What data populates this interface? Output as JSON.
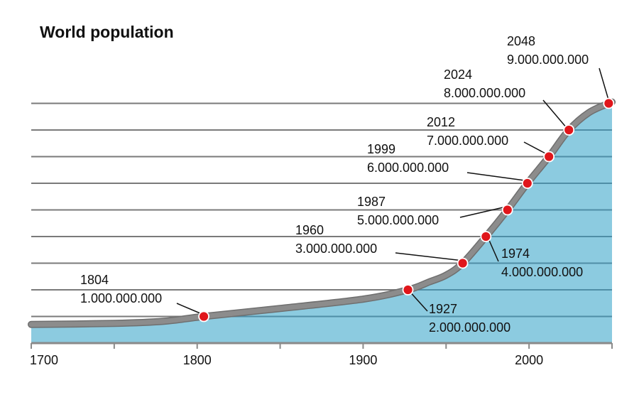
{
  "chart_data": {
    "type": "area",
    "title": "World population",
    "xlabel": "",
    "ylabel": "",
    "xlim": [
      1700,
      2050
    ],
    "ylim": [
      0,
      9.6
    ],
    "y_unit": "billions",
    "grid": true,
    "x_ticks": [
      {
        "value": 1700,
        "label": "1700"
      },
      {
        "value": 1750,
        "label": ""
      },
      {
        "value": 1800,
        "label": "1800"
      },
      {
        "value": 1850,
        "label": ""
      },
      {
        "value": 1900,
        "label": "1900"
      },
      {
        "value": 1950,
        "label": ""
      },
      {
        "value": 2000,
        "label": "2000"
      },
      {
        "value": 2050,
        "label": ""
      }
    ],
    "y_gridlines": [
      1,
      2,
      3,
      4,
      5,
      6,
      7,
      8,
      9
    ],
    "curve": {
      "x": [
        1700,
        1750,
        1780,
        1804,
        1850,
        1900,
        1927,
        1940,
        1950,
        1960,
        1974,
        1987,
        1999,
        2012,
        2024,
        2036,
        2048,
        2050
      ],
      "y": [
        0.7,
        0.74,
        0.82,
        1.0,
        1.3,
        1.65,
        2.0,
        2.3,
        2.55,
        3.0,
        4.0,
        5.0,
        6.0,
        7.0,
        8.0,
        8.65,
        9.0,
        9.05
      ]
    },
    "milestones": [
      {
        "year": 1804,
        "value": 1,
        "year_label": "1804",
        "value_label": "1.000.000.000"
      },
      {
        "year": 1927,
        "value": 2,
        "year_label": "1927",
        "value_label": "2.000.000.000"
      },
      {
        "year": 1960,
        "value": 3,
        "year_label": "1960",
        "value_label": "3.000.000.000"
      },
      {
        "year": 1974,
        "value": 4,
        "year_label": "1974",
        "value_label": "4.000.000.000"
      },
      {
        "year": 1987,
        "value": 5,
        "year_label": "1987",
        "value_label": "5.000.000.000"
      },
      {
        "year": 1999,
        "value": 6,
        "year_label": "1999",
        "value_label": "6.000.000.000"
      },
      {
        "year": 2012,
        "value": 7,
        "year_label": "2012",
        "value_label": "7.000.000.000"
      },
      {
        "year": 2024,
        "value": 8,
        "year_label": "2024",
        "value_label": "8.000.000.000"
      },
      {
        "year": 2048,
        "value": 9,
        "year_label": "2048",
        "value_label": "9.000.000.000"
      }
    ],
    "colors": {
      "area": "#8ccbe0",
      "curve": "#8c8c8c",
      "gridline_outside": "#7a7a7a",
      "gridline_inside": "#4f8ea6",
      "point": "#e0161b",
      "point_outline": "#ffffff",
      "axis": "#8a8a8a"
    }
  }
}
